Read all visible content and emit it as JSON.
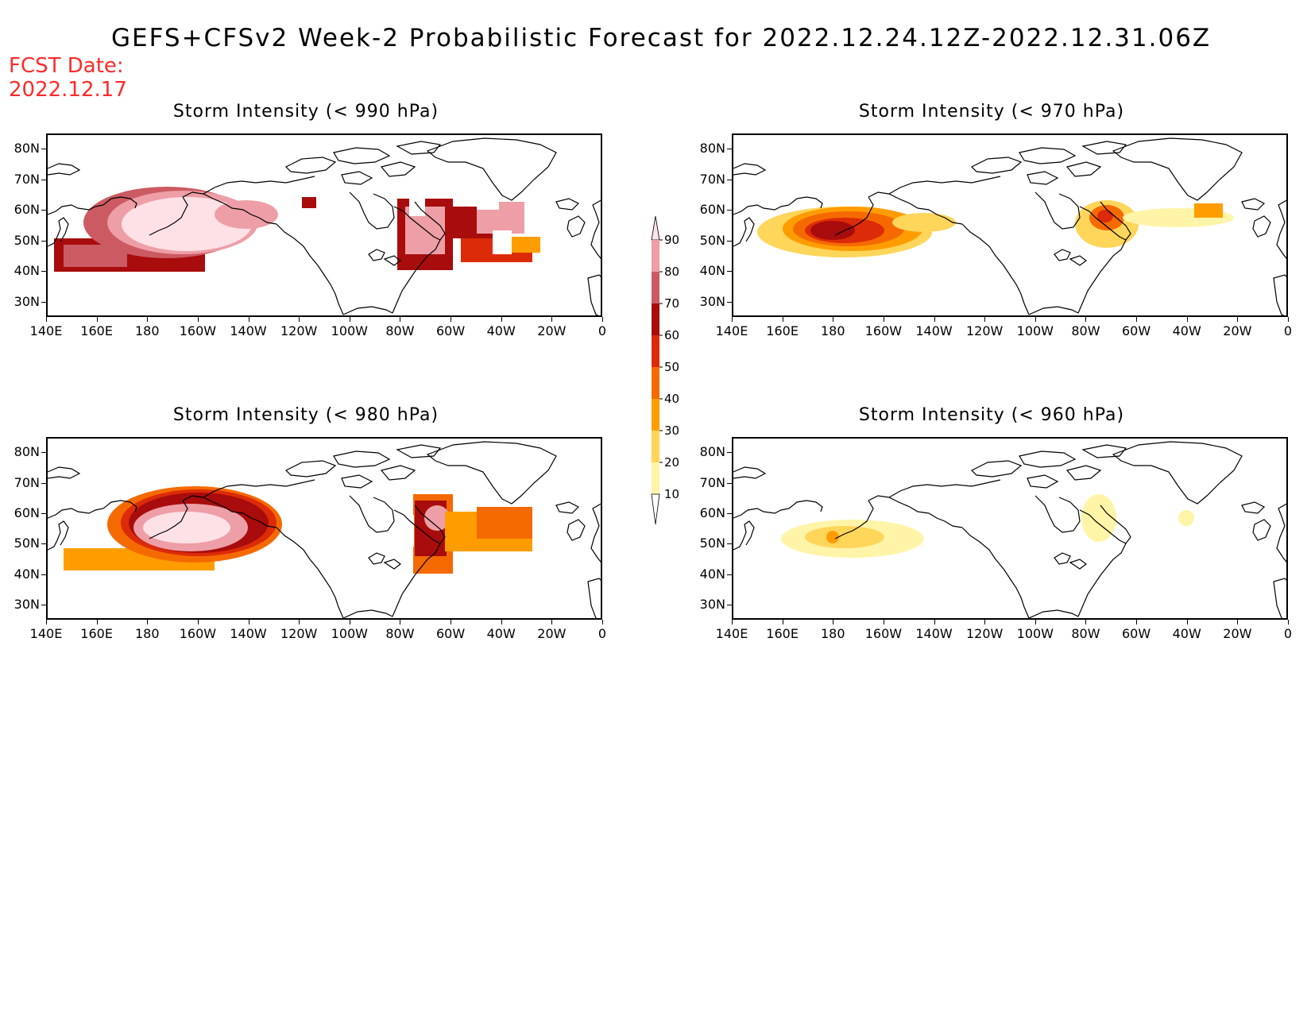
{
  "title": "GEFS+CFSv2 Week-2 Probabilistic Forecast for 2022.12.24.12Z-2022.12.31.06Z",
  "fcst_date_label": "FCST Date:",
  "fcst_date": "2022.12.17",
  "lat_labels": [
    "80N",
    "70N",
    "60N",
    "50N",
    "40N",
    "30N"
  ],
  "lon_labels": [
    "140E",
    "160E",
    "180",
    "160W",
    "140W",
    "120W",
    "100W",
    "80W",
    "60W",
    "40W",
    "20W",
    "0"
  ],
  "colorbar": {
    "levels": [
      "90",
      "80",
      "70",
      "60",
      "50",
      "40",
      "30",
      "20",
      "10"
    ],
    "colors": [
      "#fde1e6",
      "#ee9ea6",
      "#cc5a63",
      "#a80c0c",
      "#dc2b08",
      "#f56a00",
      "#ff9d00",
      "#ffd55a",
      "#fff4a8"
    ]
  },
  "panels": [
    {
      "id": "990",
      "title": "Storm Intensity (< 990 hPa)"
    },
    {
      "id": "970",
      "title": "Storm Intensity (< 970 hPa)"
    },
    {
      "id": "980",
      "title": "Storm Intensity (< 980 hPa)"
    },
    {
      "id": "960",
      "title": "Storm Intensity (< 960 hPa)"
    }
  ]
}
